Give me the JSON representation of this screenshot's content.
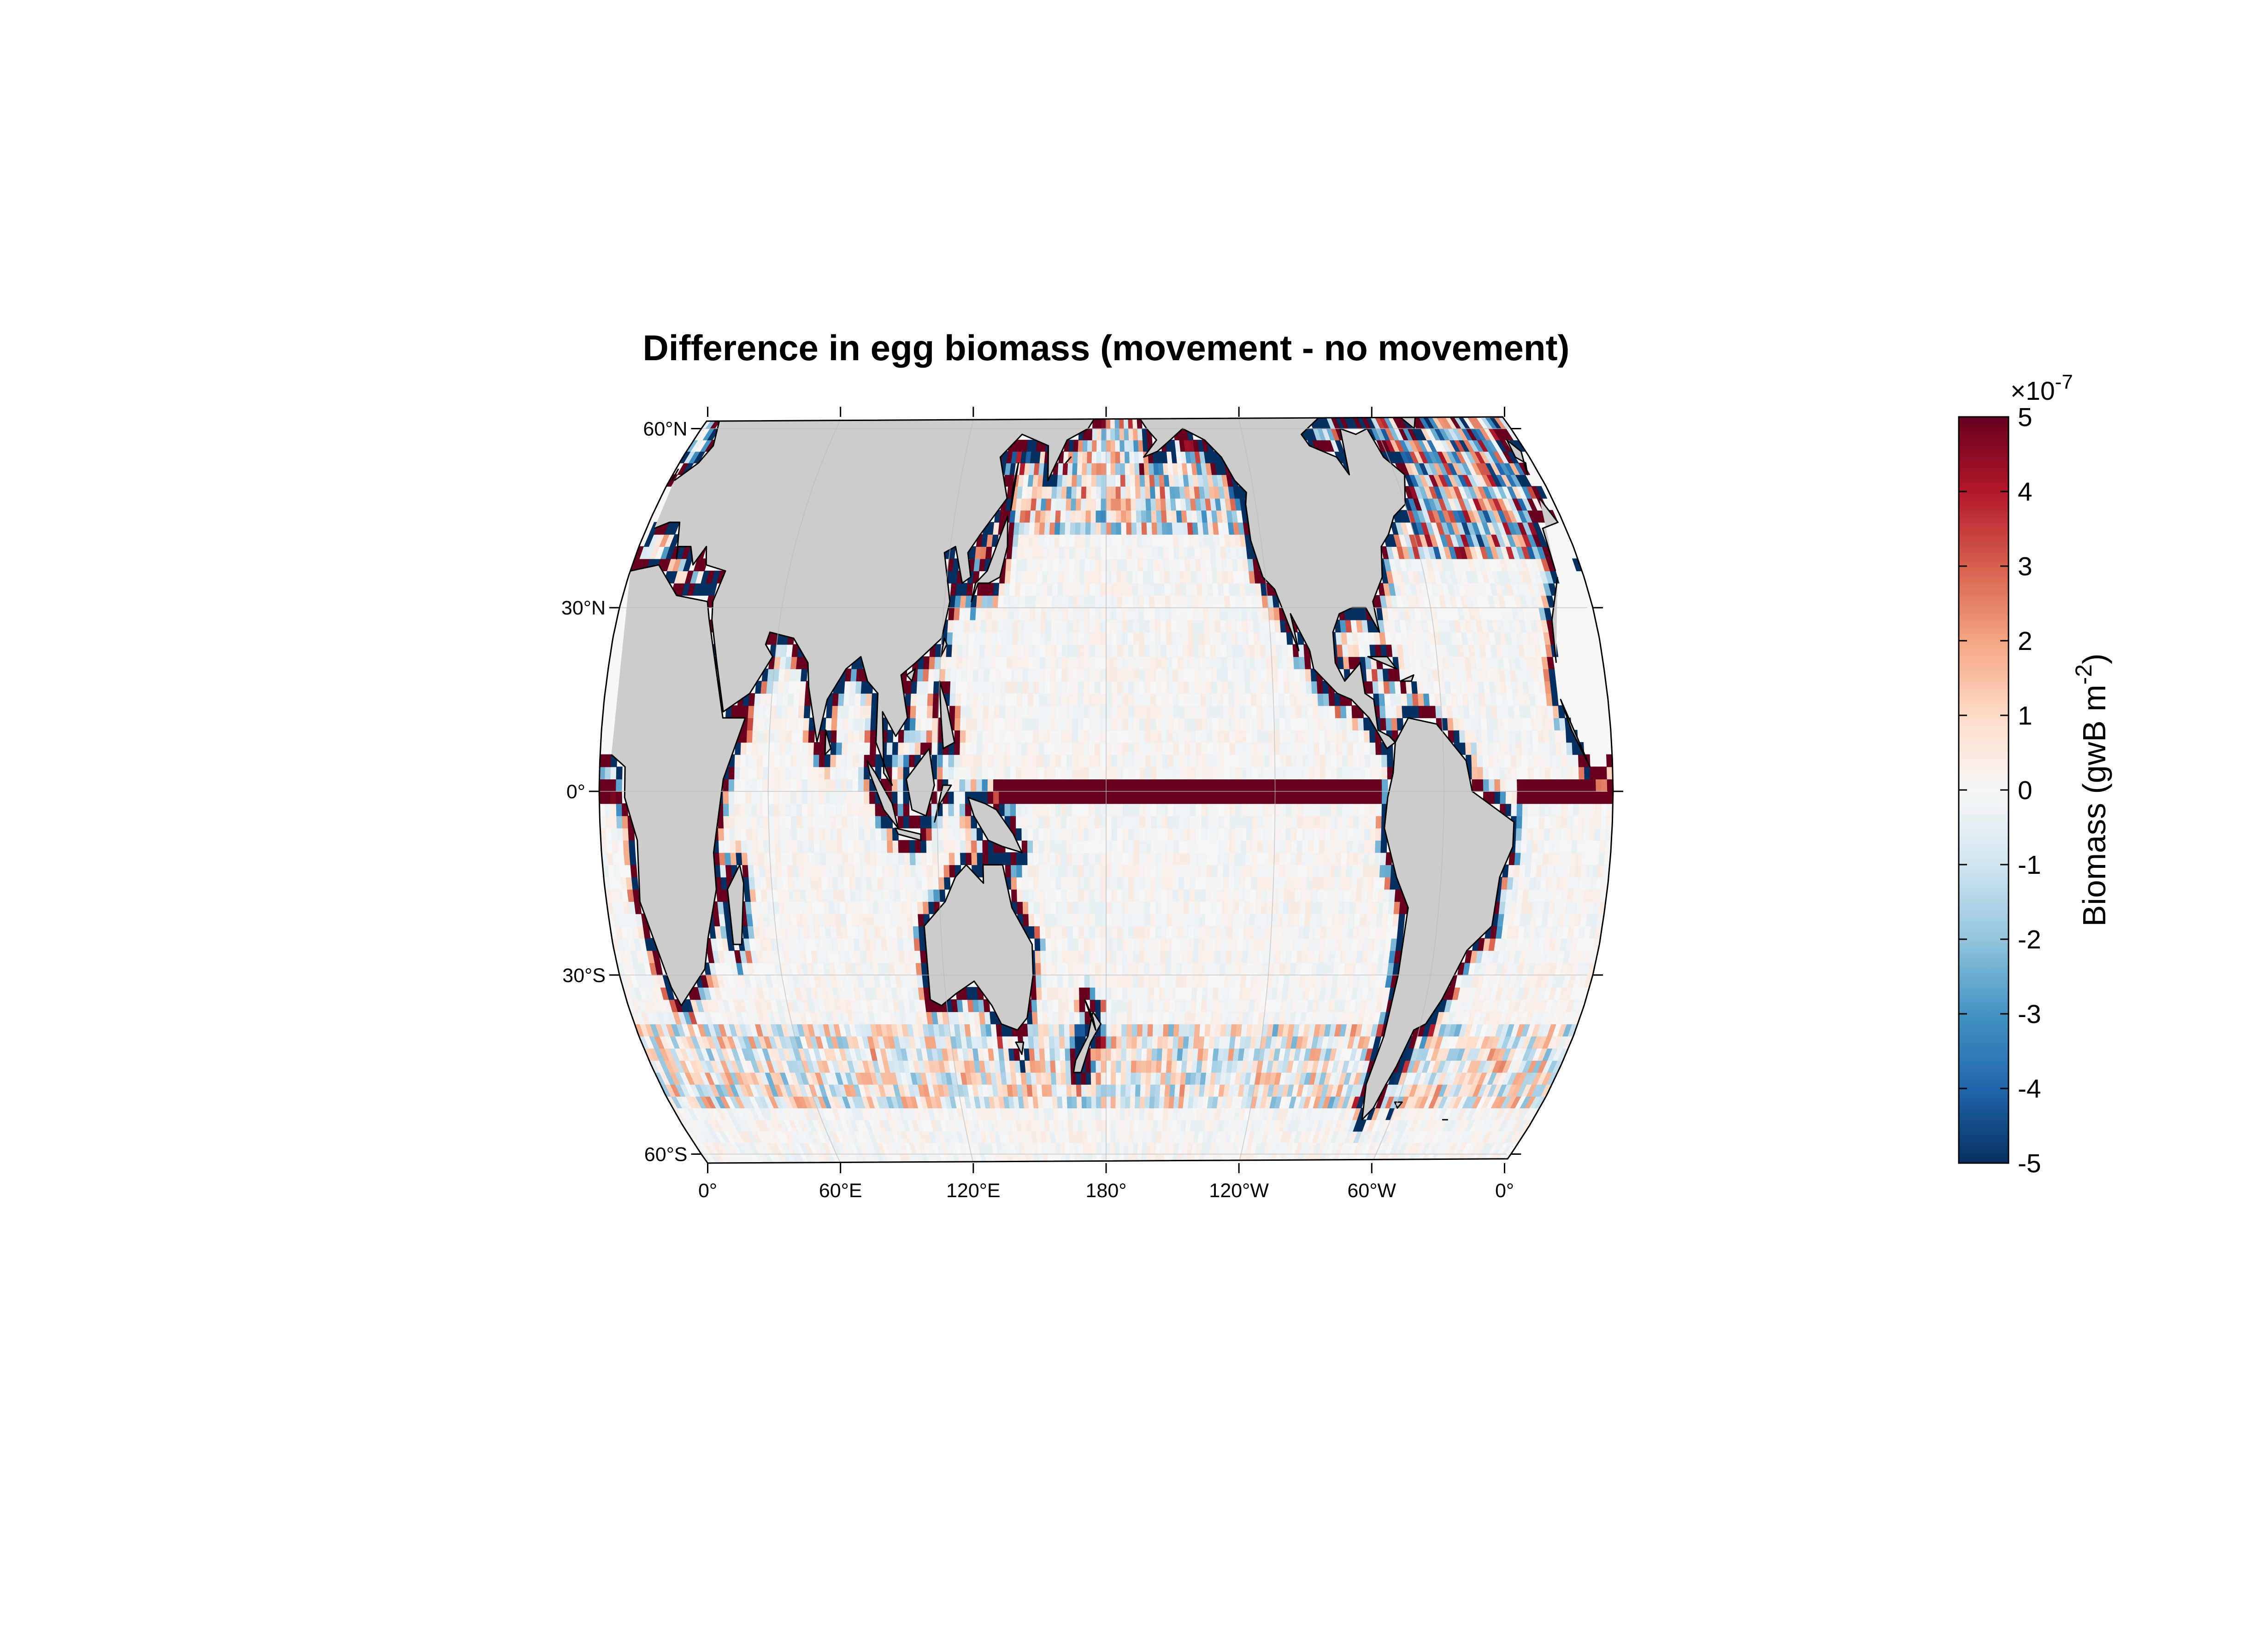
{
  "figure": {
    "title": "Difference in egg biomass (movement - no movement)"
  },
  "map": {
    "projection": "Robinson",
    "central_meridian": "180°",
    "land_color": "#cccccc",
    "coastline_color": "#000000",
    "graticule": "on",
    "lat_ticks": [
      "60°N",
      "30°N",
      "0°",
      "30°S",
      "60°S"
    ],
    "lon_ticks": [
      "0°",
      "60°E",
      "120°E",
      "180°",
      "120°W",
      "60°W",
      "0°"
    ]
  },
  "colorbar": {
    "label": "Biomass (gwB m",
    "label_exponent": "-2",
    "label_close": ")",
    "multiplier": "×10",
    "multiplier_exponent": "-7",
    "ticks": [
      "5",
      "4",
      "3",
      "2",
      "1",
      "0",
      "-1",
      "-2",
      "-3",
      "-4",
      "-5"
    ],
    "range": [
      -5,
      5
    ],
    "colormap": [
      "#053061",
      "#2166ac",
      "#4393c3",
      "#92c5de",
      "#d1e5f0",
      "#f7f7f7",
      "#fddbc7",
      "#f4a582",
      "#d6604d",
      "#b2182b",
      "#67001f"
    ]
  },
  "chart_data": {
    "type": "heatmap",
    "title": "Difference in egg biomass (movement - no movement)",
    "value_unit": "gwB m-2 ×10^-7",
    "color_range": [
      -5,
      5
    ],
    "notable_features": [
      "strong positive band along the equatorial Pacific and Atlantic",
      "strong positive and negative values along continental shelves and coastlines",
      "mixed positive/negative values in the North Atlantic and North Pacific",
      "band of negative and positive values along the Southern Ocean near 45°S",
      "near-zero values in the open subtropical gyres"
    ]
  }
}
